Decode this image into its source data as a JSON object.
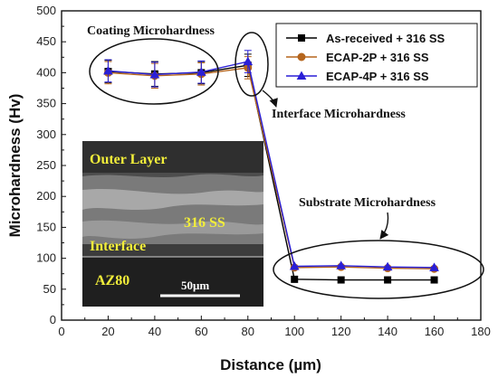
{
  "chart_data": {
    "type": "line",
    "title": "",
    "xlabel": "Distance (µm)",
    "ylabel": "Microhardness (Hv)",
    "xlim": [
      0,
      180
    ],
    "ylim": [
      0,
      500
    ],
    "xticks": [
      0,
      20,
      40,
      60,
      80,
      100,
      120,
      140,
      160,
      180
    ],
    "yticks": [
      0,
      50,
      100,
      150,
      200,
      250,
      300,
      350,
      400,
      450,
      500
    ],
    "grid": false,
    "legend_position": "top-right",
    "series": [
      {
        "name": "As-received + 316 SS",
        "color": "#000000",
        "marker": "square",
        "x": [
          20,
          40,
          60,
          80,
          100,
          120,
          140,
          160
        ],
        "y": [
          402,
          398,
          400,
          412,
          66,
          65,
          65,
          65
        ],
        "error": [
          18,
          20,
          18,
          18,
          0,
          0,
          0,
          0
        ]
      },
      {
        "name": "ECAP-2P + 316 SS",
        "color": "#b5651d",
        "marker": "circle",
        "x": [
          20,
          40,
          60,
          80,
          100,
          120,
          140,
          160
        ],
        "y": [
          400,
          395,
          398,
          408,
          85,
          86,
          84,
          83
        ],
        "error": [
          18,
          20,
          18,
          18,
          0,
          0,
          0,
          0
        ]
      },
      {
        "name": "ECAP-4P + 316 SS",
        "color": "#2a1fd6",
        "marker": "triangle",
        "x": [
          20,
          40,
          60,
          80,
          100,
          120,
          140,
          160
        ],
        "y": [
          403,
          397,
          401,
          418,
          87,
          88,
          86,
          85
        ],
        "error": [
          18,
          20,
          18,
          18,
          0,
          0,
          0,
          0
        ]
      }
    ],
    "annotations": [
      {
        "text": "Coating Microhardness"
      },
      {
        "text": "Interface Microhardness"
      },
      {
        "text": "Substrate Microhardness"
      }
    ],
    "inset": {
      "labels": [
        "Outer Layer",
        "316 SS",
        "Interface",
        "AZ80"
      ],
      "scale_bar": "50μm"
    }
  }
}
